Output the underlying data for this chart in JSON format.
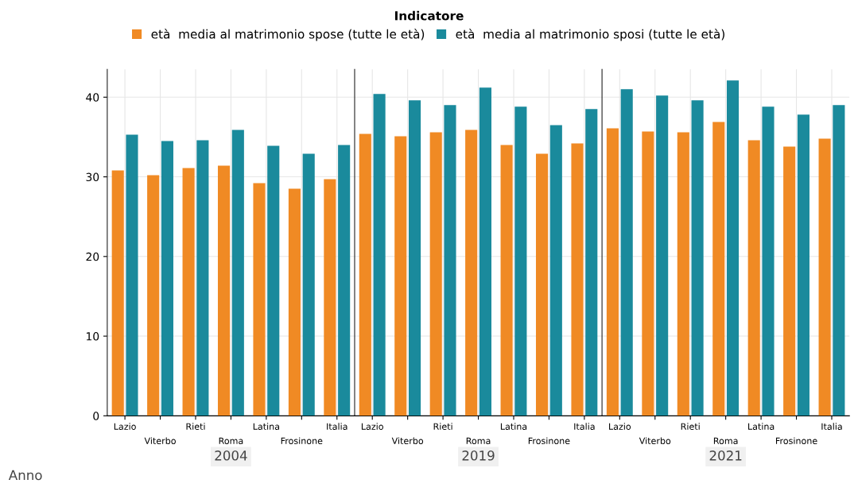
{
  "chart_data": [
    {
      "type": "bar",
      "legend_title": "Indicatore",
      "legend": "top",
      "grid": true,
      "xlabel": "2004",
      "annotations": [
        "Anno"
      ],
      "categories": [
        "Lazio",
        "Viterbo",
        "Rieti",
        "Roma",
        "Latina",
        "Frosinone",
        "Italia"
      ],
      "ylim": [
        0,
        43.5
      ],
      "yticks": [
        0,
        10,
        20,
        30,
        40
      ],
      "series": [
        {
          "name": "età  media al matrimonio spose (tutte le età)",
          "color": "#f08a24",
          "values": [
            30.8,
            30.2,
            31.1,
            31.4,
            29.2,
            28.5,
            29.7
          ]
        },
        {
          "name": "età  media al matrimonio sposi (tutte le età)",
          "color": "#1a8a9c",
          "values": [
            35.3,
            34.5,
            34.6,
            35.9,
            33.9,
            32.9,
            34.0
          ]
        }
      ]
    },
    {
      "type": "bar",
      "grid": true,
      "xlabel": "2019",
      "tick_labels": "x",
      "categories": [
        "Lazio",
        "Viterbo",
        "Rieti",
        "Roma",
        "Latina",
        "Frosinone",
        "Italia"
      ],
      "ylim": [
        0,
        43.5
      ],
      "yticks": [
        0,
        10,
        20,
        30,
        40
      ],
      "series": [
        {
          "color": "#f08a24",
          "values": [
            35.4,
            35.1,
            35.6,
            35.9,
            34.0,
            32.9,
            34.2
          ]
        },
        {
          "color": "#1a8a9c",
          "values": [
            40.4,
            39.6,
            39.0,
            41.2,
            38.8,
            36.5,
            38.5
          ]
        }
      ]
    },
    {
      "type": "bar",
      "grid": true,
      "xlabel": "2021",
      "tick_labels": "x",
      "categories": [
        "Lazio",
        "Viterbo",
        "Rieti",
        "Roma",
        "Latina",
        "Frosinone",
        "Italia"
      ],
      "ylim": [
        0,
        43.5
      ],
      "yticks": [
        0,
        10,
        20,
        30,
        40
      ],
      "series": [
        {
          "color": "#f08a24",
          "values": [
            36.1,
            35.7,
            35.6,
            36.9,
            34.6,
            33.8,
            34.8
          ]
        },
        {
          "color": "#1a8a9c",
          "values": [
            41.0,
            40.2,
            39.6,
            42.1,
            38.8,
            37.8,
            39.0
          ]
        }
      ]
    }
  ]
}
